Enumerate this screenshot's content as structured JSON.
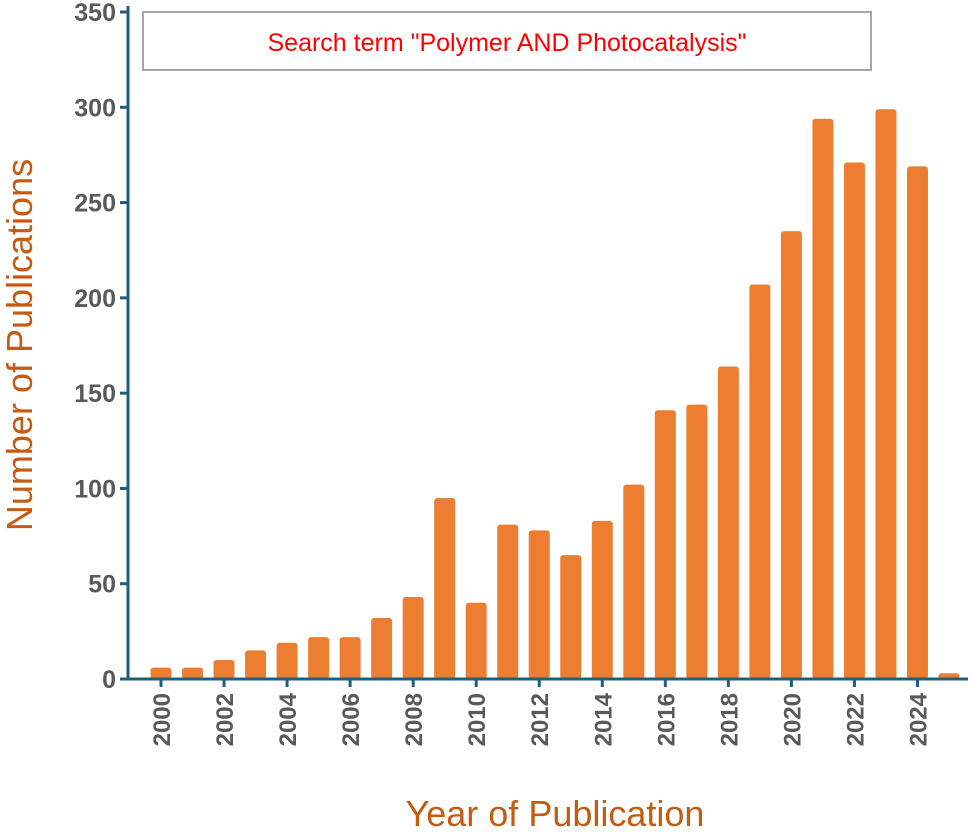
{
  "chart_data": {
    "type": "bar",
    "xlabel": "Year of Publication",
    "ylabel": "Number of Publications",
    "annotation": "Search term \"Polymer AND Photocatalysis\"",
    "ylim": [
      0,
      350
    ],
    "yticks": [
      0,
      50,
      100,
      150,
      200,
      250,
      300,
      350
    ],
    "xtick_labels": [
      "2000",
      "2002",
      "2004",
      "2006",
      "2008",
      "2010",
      "2012",
      "2014",
      "2016",
      "2018",
      "2020",
      "2022",
      "2024"
    ],
    "categories": [
      "2000",
      "2001",
      "2002",
      "2003",
      "2004",
      "2005",
      "2006",
      "2007",
      "2008",
      "2009",
      "2010",
      "2011",
      "2012",
      "2013",
      "2014",
      "2015",
      "2016",
      "2017",
      "2018",
      "2019",
      "2020",
      "2021",
      "2022",
      "2023",
      "2024",
      "2025"
    ],
    "values": [
      6,
      6,
      10,
      15,
      19,
      22,
      22,
      32,
      43,
      95,
      40,
      81,
      78,
      65,
      83,
      102,
      141,
      144,
      164,
      207,
      235,
      294,
      271,
      299,
      269,
      3
    ],
    "grid": false,
    "colors": {
      "bar": "#ED7D31",
      "axis": "#1F5F7A",
      "axis_title": "#C55A11",
      "annotation_text": "#FF0000",
      "annotation_border": "#A6A6A6",
      "tick_labels": "#595959"
    }
  }
}
